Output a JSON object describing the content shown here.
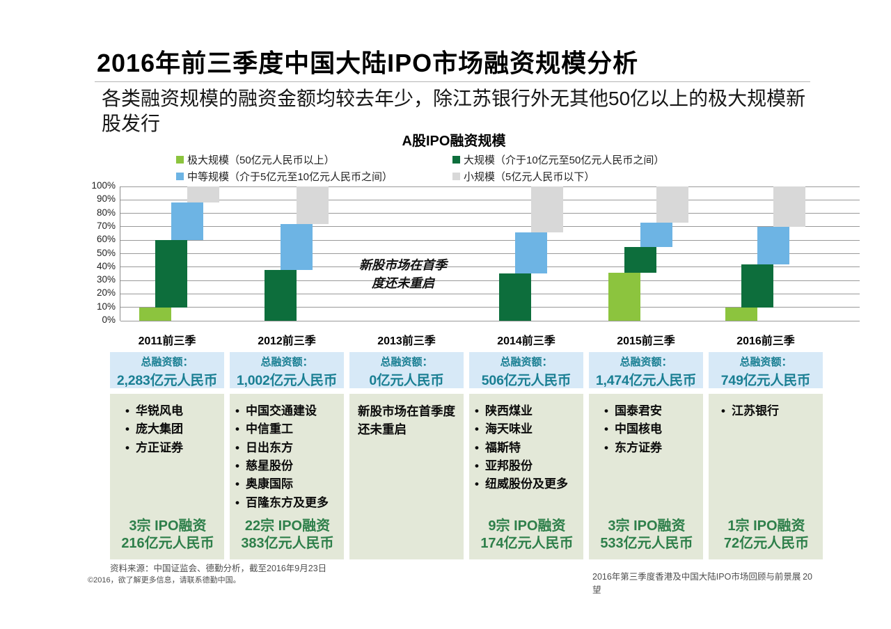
{
  "slide": {
    "title": "2016年前三季度中国大陆IPO市场融资规模分析",
    "subtitle": "各类融资规模的融资金额均较去年少，除江苏银行外无其他50亿以上的极大规模新股发行",
    "footer": {
      "source": "资料来源：中国证监会、德勤分析，截至2016年9月23日",
      "copyright": "©2016，欲了解更多信息，请联系德勤中国。",
      "doc_title": "2016年第三季度香港及中国大陆IPO市场回顾与前景展望",
      "page_number": "20"
    }
  },
  "chart_data": {
    "type": "bar",
    "variant": "staggered-stacked-percent",
    "title": "A股IPO融资规模",
    "categories": [
      "2011前三季",
      "2012前三季",
      "2013前三季",
      "2014前三季",
      "2015前三季",
      "2016前三季"
    ],
    "ylim": [
      0,
      100
    ],
    "y_tick_labels": [
      "100%",
      "90%",
      "80%",
      "70%",
      "60%",
      "50%",
      "40%",
      "30%",
      "20%",
      "10%",
      "0%"
    ],
    "grid": true,
    "legend_position": "top",
    "series": [
      {
        "name": "极大规模（50亿元人民币以上）",
        "short_name": "极大规模",
        "color": "#8cc43e",
        "values": [
          10,
          0,
          0,
          0,
          36,
          10
        ]
      },
      {
        "name": "大规模（介于10亿元至50亿元人民币之间）",
        "short_name": "大规模",
        "color": "#0d6e3c",
        "values": [
          50,
          38,
          0,
          35,
          19,
          32
        ]
      },
      {
        "name": "中等规模（介于5亿元至10亿元人民币之间）",
        "short_name": "中等规模",
        "color": "#6db4e4",
        "values": [
          28,
          34,
          0,
          31,
          18,
          28
        ]
      },
      {
        "name": "小规模（5亿元人民币以下）",
        "short_name": "小规模",
        "color": "#d8d8d8",
        "values": [
          12,
          28,
          0,
          34,
          27,
          30
        ]
      }
    ],
    "annotation_lines": [
      "新股市场在首季",
      "度还未重启"
    ]
  },
  "table": {
    "total_label": "总融资额：",
    "columns": [
      {
        "period": "2011前三季",
        "total_value": "2,283亿元人民币",
        "companies": [
          "华锐风电",
          "庞大集团",
          "方正证券"
        ],
        "note": "",
        "summary_count": "3宗 IPO融资",
        "summary_amount": "216亿元人民币"
      },
      {
        "period": "2012前三季",
        "total_value": "1,002亿元人民币",
        "companies": [
          "中国交通建设",
          "中信重工",
          "日出东方",
          "慈星股份",
          "奥康国际",
          "百隆东方及更多"
        ],
        "note": "",
        "summary_count": "22宗 IPO融资",
        "summary_amount": "383亿元人民币"
      },
      {
        "period": "2013前三季",
        "total_value": "0亿元人民币",
        "companies": [],
        "note": "新股市场在首季度还未重启",
        "summary_count": "",
        "summary_amount": ""
      },
      {
        "period": "2014前三季",
        "total_value": "506亿元人民币",
        "companies": [
          "陕西煤业",
          "海天味业",
          "福斯特",
          "亚邦股份",
          "纽威股份及更多"
        ],
        "note": "",
        "summary_count": "9宗 IPO融资",
        "summary_amount": "174亿元人民币"
      },
      {
        "period": "2015前三季",
        "total_value": "1,474亿元人民币",
        "companies": [
          "国泰君安",
          "中国核电",
          "东方证券"
        ],
        "note": "",
        "summary_count": "3宗 IPO融资",
        "summary_amount": "533亿元人民币"
      },
      {
        "period": "2016前三季",
        "total_value": "749亿元人民币",
        "companies": [
          "江苏银行"
        ],
        "note": "",
        "summary_count": "1宗 IPO融资",
        "summary_amount": "72亿元人民币"
      }
    ]
  },
  "colors": {
    "extra_large": "#8cc43e",
    "large": "#0d6e3c",
    "medium": "#6db4e4",
    "small": "#d8d8d8",
    "total_box_bg": "#d7e9f7",
    "total_text": "#1a7f93",
    "company_box_bg": "#e3e8d8",
    "summary_text": "#2e7f4a",
    "gridline": "#999999"
  }
}
